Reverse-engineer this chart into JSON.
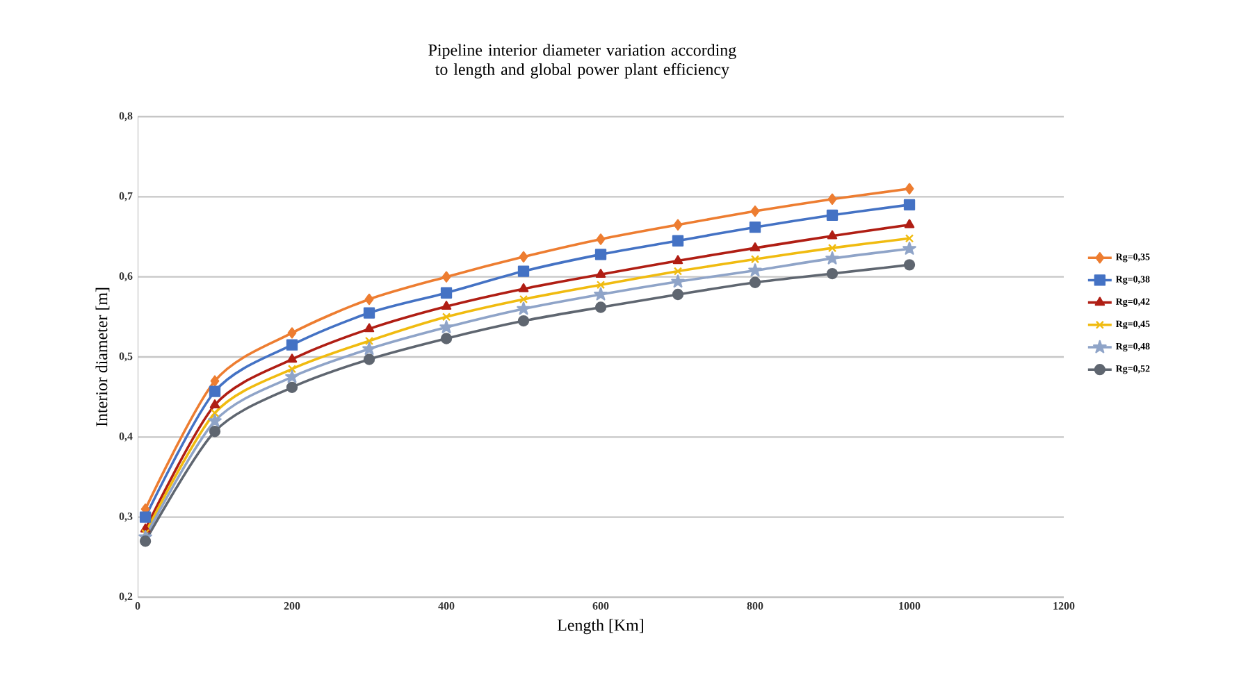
{
  "chart_data": {
    "type": "line",
    "title": "Pipeline interior diameter variation according to length and global power plant efficiency",
    "xlabel": "Length [Km]",
    "ylabel": "Interior diameter [m]",
    "x": [
      10,
      100,
      200,
      300,
      400,
      500,
      600,
      700,
      800,
      900,
      1000
    ],
    "series": [
      {
        "name": "Rg=0,35",
        "color": "#ed7d31",
        "marker": "diamond",
        "values": [
          0.31,
          0.47,
          0.53,
          0.572,
          0.6,
          0.625,
          0.647,
          0.665,
          0.682,
          0.697,
          0.71
        ]
      },
      {
        "name": "Rg=0,38",
        "color": "#4472c4",
        "marker": "square",
        "values": [
          0.3,
          0.457,
          0.515,
          0.555,
          0.58,
          0.607,
          0.628,
          0.645,
          0.662,
          0.677,
          0.69
        ]
      },
      {
        "name": "Rg=0,42",
        "color": "#b01e14",
        "marker": "triangle",
        "values": [
          0.285,
          0.44,
          0.497,
          0.535,
          0.563,
          0.585,
          0.603,
          0.62,
          0.636,
          0.651,
          0.665
        ]
      },
      {
        "name": "Rg=0,45",
        "color": "#f0bb10",
        "marker": "cross",
        "values": [
          0.28,
          0.43,
          0.485,
          0.52,
          0.55,
          0.572,
          0.59,
          0.607,
          0.622,
          0.636,
          0.648
        ]
      },
      {
        "name": "Rg=0,48",
        "color": "#8fa4c8",
        "marker": "star",
        "values": [
          0.275,
          0.42,
          0.475,
          0.51,
          0.537,
          0.56,
          0.578,
          0.594,
          0.608,
          0.623,
          0.635
        ]
      },
      {
        "name": "Rg=0,52",
        "color": "#5f6670",
        "marker": "circle",
        "values": [
          0.27,
          0.407,
          0.462,
          0.497,
          0.523,
          0.545,
          0.562,
          0.578,
          0.593,
          0.604,
          0.615
        ]
      }
    ],
    "xlim": [
      0,
      1200
    ],
    "xticks": [
      0,
      200,
      400,
      600,
      800,
      1000,
      1200
    ],
    "ylim": [
      0.2,
      0.8
    ],
    "yticks": [
      {
        "value": 0.2,
        "label": "0,2"
      },
      {
        "value": 0.3,
        "label": "0,3"
      },
      {
        "value": 0.4,
        "label": "0,4"
      },
      {
        "value": 0.5,
        "label": "0,5"
      },
      {
        "value": 0.6,
        "label": "0,6"
      },
      {
        "value": 0.7,
        "label": "0,7"
      },
      {
        "value": 0.8,
        "label": "0,8"
      }
    ],
    "grid": "y",
    "legend": "right",
    "line_style": "solid"
  }
}
